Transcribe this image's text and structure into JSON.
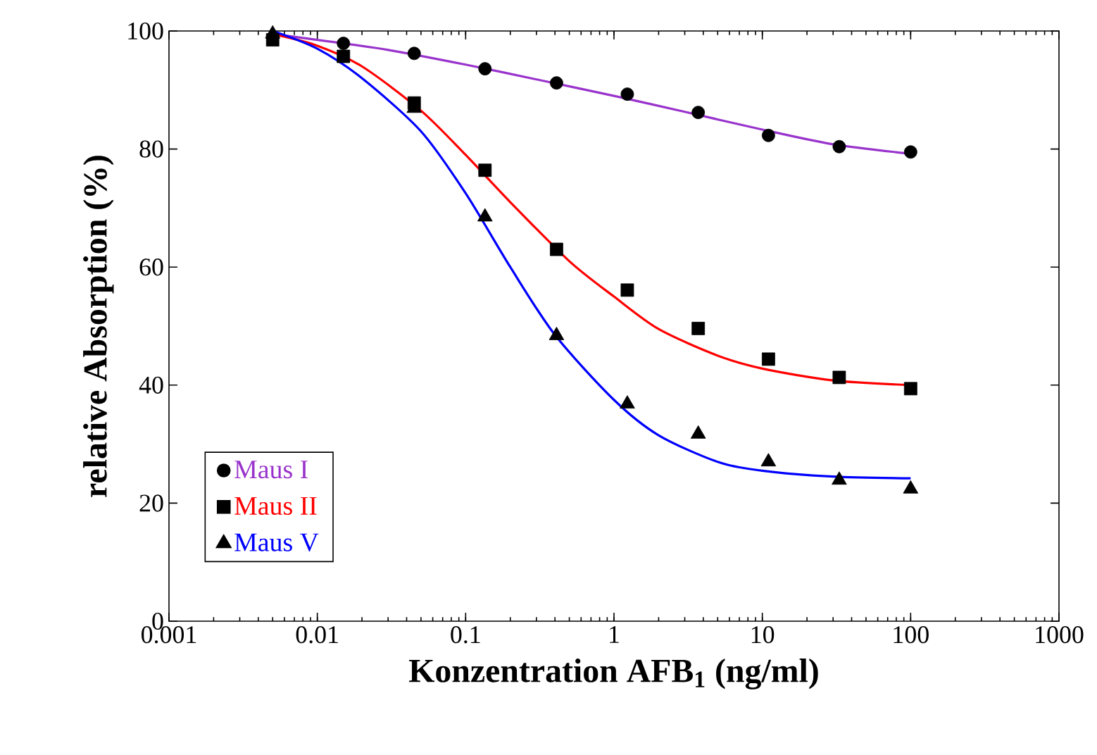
{
  "chart_data": {
    "type": "scatter",
    "xlabel": "Konzentration AFB$_{1}$ (ng/ml)",
    "ylabel": "relative Absorption (%)",
    "log": "x",
    "xlim": [
      0.001,
      1000
    ],
    "xticks": [
      0.001,
      0.01,
      0.1,
      1,
      10,
      100,
      1000
    ],
    "ylim": [
      0,
      100
    ],
    "yticks": [
      0,
      20,
      40,
      60,
      80,
      100
    ],
    "grid": false,
    "legend": "bottom left",
    "series": [
      {
        "name": "Maus I",
        "marker": "circle",
        "color": "#000000",
        "x": [
          0.015,
          0.045,
          0.135,
          0.41,
          1.23,
          3.7,
          11,
          33,
          100
        ],
        "values": [
          97.9,
          96.2,
          93.6,
          91.2,
          89.3,
          86.2,
          82.3,
          80.4,
          79.5
        ]
      },
      {
        "type": "line",
        "color": "#9933cc",
        "x": [
          0.005,
          0.01,
          0.03,
          0.1,
          0.3,
          1,
          3,
          10,
          30,
          100
        ],
        "values": [
          99.5,
          98.5,
          96.8,
          94.3,
          91.8,
          89,
          86.3,
          83.3,
          80.8,
          79.2
        ]
      },
      {
        "name": "Maus II",
        "marker": "square",
        "color": "#000000",
        "x": [
          0.005,
          0.015,
          0.045,
          0.135,
          0.41,
          1.23,
          3.7,
          11,
          33,
          100
        ],
        "values": [
          98.5,
          95.7,
          87.8,
          76.4,
          63,
          56.1,
          49.6,
          44.4,
          41.3,
          39.4
        ]
      },
      {
        "type": "line",
        "color": "#ff0000",
        "x": [
          0.005,
          0.01,
          0.02,
          0.05,
          0.1,
          0.2,
          0.5,
          1,
          2,
          5,
          10,
          30,
          100
        ],
        "values": [
          99.5,
          97.5,
          94,
          86.5,
          79,
          71,
          61,
          55,
          49.5,
          45,
          42.8,
          40.8,
          40
        ]
      },
      {
        "name": "Maus V",
        "marker": "triangle",
        "color": "#000000",
        "x": [
          0.005,
          0.015,
          0.045,
          0.135,
          0.41,
          1.23,
          3.7,
          11,
          33,
          100
        ],
        "values": [
          99.5,
          null,
          86.9,
          68.5,
          48.4,
          36.8,
          31.7,
          27,
          23.9,
          22.4
        ]
      },
      {
        "type": "line",
        "color": "#0000ff",
        "x": [
          0.005,
          0.01,
          0.02,
          0.05,
          0.1,
          0.2,
          0.4,
          1,
          2,
          5,
          10,
          30,
          100
        ],
        "values": [
          100,
          97,
          92,
          83,
          72.5,
          60,
          48.5,
          37.5,
          31.5,
          27,
          25.5,
          24.5,
          24.2
        ]
      }
    ]
  }
}
